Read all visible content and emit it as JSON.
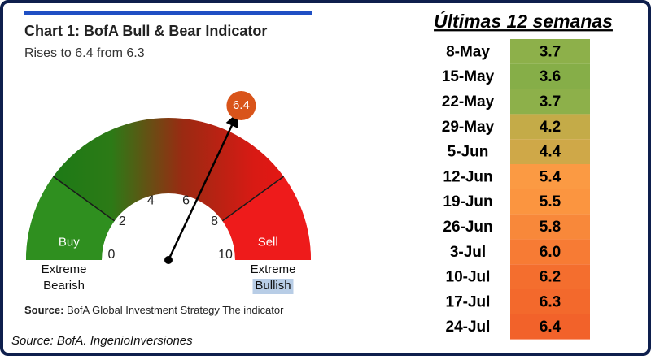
{
  "chart_data": {
    "type": "gauge",
    "title": "Chart 1: BofA Bull & Bear Indicator",
    "subtitle": "Rises to 6.4 from 6.3",
    "lim": [
      0,
      10
    ],
    "ticks": [
      0,
      2,
      4,
      6,
      8,
      10
    ],
    "value": 6.4,
    "value_color": "#d9541a",
    "zones": [
      {
        "name": "Buy",
        "from": 0,
        "to": 2,
        "color": "#2f8f1f"
      },
      {
        "name": "Sell",
        "from": 8,
        "to": 10,
        "color": "#ee1b1b"
      }
    ],
    "low_label": [
      "Extreme",
      "Bearish"
    ],
    "high_label": [
      "Extreme",
      "Bullish"
    ],
    "source": {
      "label": "Source:",
      "text": "BofA Global Investment Strategy The indicator"
    }
  },
  "table": {
    "title": "Últimas 12 semanas",
    "rows": [
      [
        "8-May",
        "3.7"
      ],
      [
        "15-May",
        "3.6"
      ],
      [
        "22-May",
        "3.7"
      ],
      [
        "29-May",
        "4.2"
      ],
      [
        "5-Jun",
        "4.4"
      ],
      [
        "12-Jun",
        "5.4"
      ],
      [
        "19-Jun",
        "5.5"
      ],
      [
        "26-Jun",
        "5.8"
      ],
      [
        "3-Jul",
        "6.0"
      ],
      [
        "10-Jul",
        "6.2"
      ],
      [
        "17-Jul",
        "6.3"
      ],
      [
        "24-Jul",
        "6.4"
      ]
    ],
    "colors": [
      "#8db04a",
      "#86ae48",
      "#8db04a",
      "#c4ab48",
      "#cfa848",
      "#fb9a43",
      "#fb9540",
      "#f8883a",
      "#f77b34",
      "#f46e2e",
      "#f3692c",
      "#f2622a"
    ]
  },
  "footer": "Source: BofA. IngenioInversiones"
}
